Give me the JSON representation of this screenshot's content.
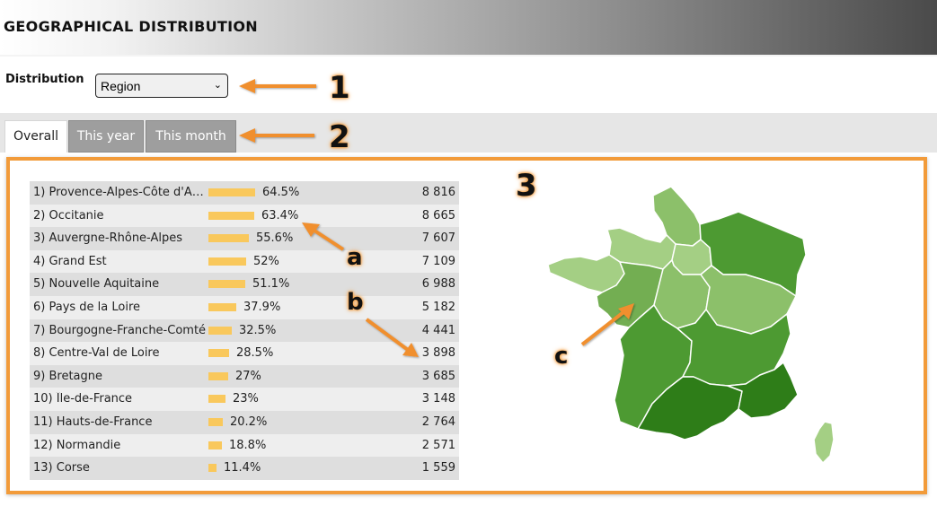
{
  "header": {
    "title": "GEOGRAPHICAL DISTRIBUTION"
  },
  "distribution": {
    "label": "Distribution",
    "selected": "Region"
  },
  "tabs": [
    {
      "label": "Overall",
      "active": true
    },
    {
      "label": "This year",
      "active": false
    },
    {
      "label": "This month",
      "active": false
    }
  ],
  "table": {
    "rows": [
      {
        "rank": "1)",
        "name": "Provence-Alpes-Côte d'Azur",
        "percent": "64.5%",
        "count": "8 816",
        "value": 64.5
      },
      {
        "rank": "2)",
        "name": "Occitanie",
        "percent": "63.4%",
        "count": "8 665",
        "value": 63.4
      },
      {
        "rank": "3)",
        "name": "Auvergne-Rhône-Alpes",
        "percent": "55.6%",
        "count": "7 607",
        "value": 55.6
      },
      {
        "rank": "4)",
        "name": "Grand Est",
        "percent": "52%",
        "count": "7 109",
        "value": 52
      },
      {
        "rank": "5)",
        "name": "Nouvelle Aquitaine",
        "percent": "51.1%",
        "count": "6 988",
        "value": 51.1
      },
      {
        "rank": "6)",
        "name": "Pays de la Loire",
        "percent": "37.9%",
        "count": "5 182",
        "value": 37.9
      },
      {
        "rank": "7)",
        "name": "Bourgogne-Franche-Comté",
        "percent": "32.5%",
        "count": "4 441",
        "value": 32.5
      },
      {
        "rank": "8)",
        "name": "Centre-Val de Loire",
        "percent": "28.5%",
        "count": "3 898",
        "value": 28.5
      },
      {
        "rank": "9)",
        "name": "Bretagne",
        "percent": "27%",
        "count": "3 685",
        "value": 27
      },
      {
        "rank": "10)",
        "name": "Île-de-France",
        "percent": "23%",
        "count": "3 148",
        "value": 23
      },
      {
        "rank": "11)",
        "name": "Hauts-de-France",
        "percent": "20.2%",
        "count": "2 764",
        "value": 20.2
      },
      {
        "rank": "12)",
        "name": "Normandie",
        "percent": "18.8%",
        "count": "2 571",
        "value": 18.8
      },
      {
        "rank": "13)",
        "name": "Corse",
        "percent": "11.4%",
        "count": "1 559",
        "value": 11.4
      }
    ]
  },
  "callouts": {
    "n1": "1",
    "n2": "2",
    "n3": "3",
    "a": "a",
    "b": "b",
    "c": "c"
  },
  "colors": {
    "accent": "#f29b3a",
    "bar": "#f9c85c",
    "map_dark": "#2e7d18",
    "map_mid": "#4d9a32",
    "map_light": "#8cc06a"
  }
}
